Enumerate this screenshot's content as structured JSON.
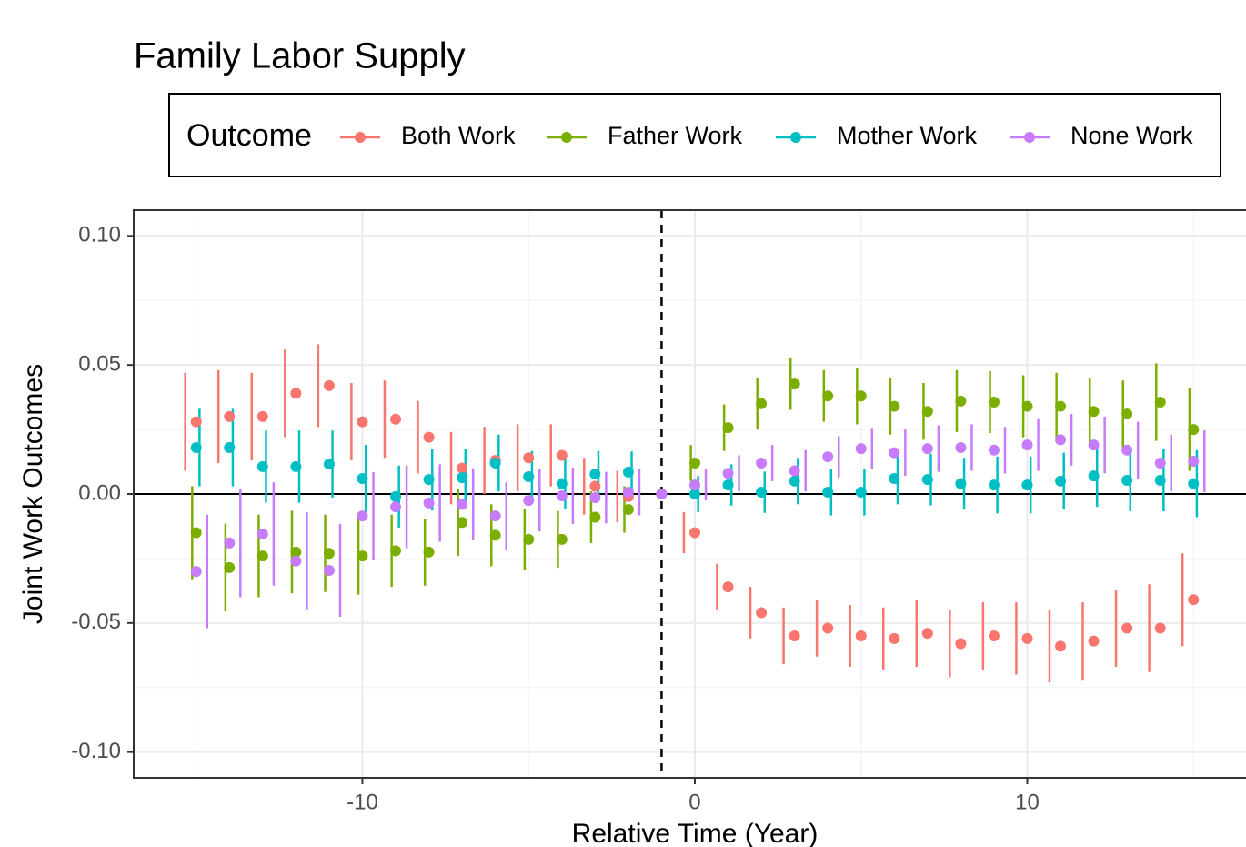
{
  "chart_data": {
    "type": "pointrange",
    "title": "Family Labor Supply",
    "x_label": "Relative Time (Year)",
    "y_label": "Joint Work Outcomes",
    "legend_title": "Outcome",
    "x": [
      -15,
      -14,
      -13,
      -12,
      -11,
      -10,
      -9,
      -8,
      -7,
      -6,
      -5,
      -4,
      -3,
      -2,
      -1,
      0,
      1,
      2,
      3,
      4,
      5,
      6,
      7,
      8,
      9,
      10,
      11,
      12,
      13,
      14,
      15
    ],
    "series": [
      {
        "name": "Both Work",
        "color": "#F8766D",
        "values": [
          0.028,
          0.03,
          0.03,
          0.039,
          0.042,
          0.028,
          0.029,
          0.022,
          0.01,
          0.013,
          0.014,
          0.015,
          0.003,
          -0.001,
          0,
          -0.015,
          -0.036,
          -0.046,
          -0.055,
          -0.052,
          -0.055,
          -0.056,
          -0.054,
          -0.058,
          -0.055,
          -0.056,
          -0.059,
          -0.057,
          -0.052,
          -0.052,
          -0.041
        ],
        "errors": [
          0.019,
          0.018,
          0.017,
          0.017,
          0.016,
          0.015,
          0.015,
          0.014,
          0.014,
          0.013,
          0.013,
          0.012,
          0.011,
          0.01,
          0,
          0.008,
          0.009,
          0.01,
          0.011,
          0.011,
          0.012,
          0.012,
          0.013,
          0.013,
          0.013,
          0.014,
          0.014,
          0.015,
          0.015,
          0.017,
          0.018
        ]
      },
      {
        "name": "Father Work",
        "color": "#7CAE00",
        "values": [
          -0.015,
          -0.0285,
          -0.024,
          -0.0225,
          -0.023,
          -0.024,
          -0.022,
          -0.0225,
          -0.011,
          -0.016,
          -0.0176,
          -0.0176,
          -0.009,
          -0.006,
          0,
          0.012,
          0.0257,
          0.035,
          0.0426,
          0.038,
          0.038,
          0.034,
          0.032,
          0.036,
          0.0356,
          0.034,
          0.034,
          0.032,
          0.031,
          0.0356,
          0.025
        ],
        "errors": [
          0.018,
          0.017,
          0.016,
          0.016,
          0.015,
          0.015,
          0.014,
          0.013,
          0.013,
          0.012,
          0.012,
          0.011,
          0.01,
          0.009,
          0,
          0.007,
          0.009,
          0.01,
          0.01,
          0.01,
          0.011,
          0.011,
          0.011,
          0.012,
          0.012,
          0.012,
          0.013,
          0.013,
          0.013,
          0.015,
          0.016
        ]
      },
      {
        "name": "Mother Work",
        "color": "#00BFC4",
        "values": [
          0.018,
          0.018,
          0.0106,
          0.0106,
          0.0116,
          0.006,
          -0.001,
          0.0056,
          0.0063,
          0.012,
          0.0067,
          0.004,
          0.0077,
          0.0085,
          0,
          0,
          0.0035,
          0.0007,
          0.005,
          0.0007,
          0.0007,
          0.006,
          0.0056,
          0.004,
          0.0035,
          0.0035,
          0.005,
          0.007,
          0.0053,
          0.0053,
          0.004
        ],
        "errors": [
          0.015,
          0.015,
          0.014,
          0.014,
          0.013,
          0.013,
          0.012,
          0.012,
          0.011,
          0.011,
          0.01,
          0.01,
          0.009,
          0.008,
          0,
          0.007,
          0.008,
          0.008,
          0.009,
          0.009,
          0.009,
          0.01,
          0.01,
          0.01,
          0.011,
          0.011,
          0.011,
          0.012,
          0.012,
          0.012,
          0.013
        ]
      },
      {
        "name": "None Work",
        "color": "#C77CFF",
        "values": [
          -0.03,
          -0.019,
          -0.0155,
          -0.026,
          -0.0296,
          -0.0085,
          -0.005,
          -0.0035,
          -0.004,
          -0.0085,
          -0.0025,
          -0.0007,
          -0.0014,
          0.0007,
          0,
          0.0035,
          0.008,
          0.012,
          0.009,
          0.0144,
          0.0176,
          0.016,
          0.0176,
          0.018,
          0.017,
          0.019,
          0.021,
          0.019,
          0.017,
          0.012,
          0.0127
        ],
        "errors": [
          0.022,
          0.021,
          0.02,
          0.019,
          0.018,
          0.017,
          0.016,
          0.015,
          0.014,
          0.013,
          0.012,
          0.011,
          0.01,
          0.009,
          0,
          0.006,
          0.007,
          0.007,
          0.008,
          0.008,
          0.008,
          0.009,
          0.009,
          0.009,
          0.009,
          0.01,
          0.01,
          0.011,
          0.011,
          0.011,
          0.012
        ]
      }
    ],
    "xlim": [
      -16.88,
      16.58
    ],
    "ylim": [
      -0.11,
      0.11
    ],
    "xticks": [
      -10,
      0,
      10
    ],
    "yticks": [
      {
        "value": 0.1,
        "label": "0.10"
      },
      {
        "value": 0.05,
        "label": "0.05"
      },
      {
        "value": 0,
        "label": "0.00"
      },
      {
        "value": -0.05,
        "label": "-0.05"
      },
      {
        "value": -0.1,
        "label": "-0.10"
      }
    ],
    "vline": -1,
    "hline": 0,
    "grid": true,
    "legend_position": "top"
  }
}
